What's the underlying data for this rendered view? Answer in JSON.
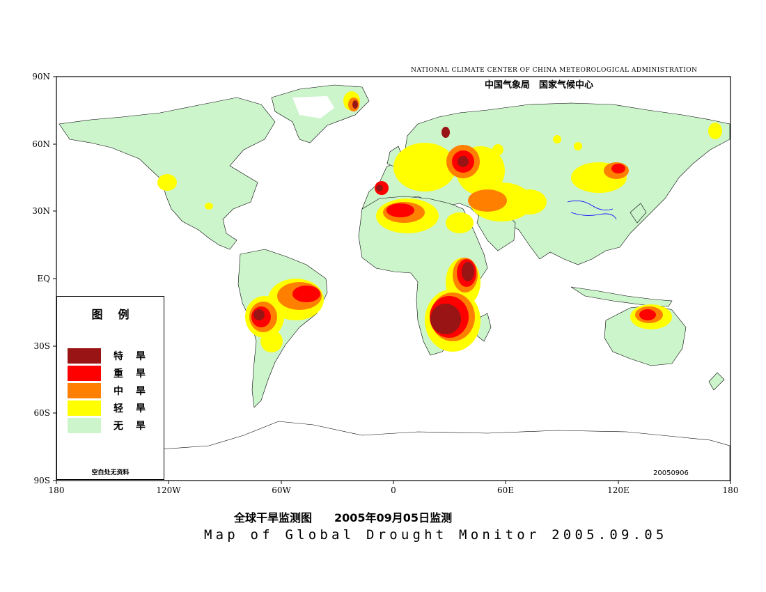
{
  "header": {
    "agency_en": "NATIONAL CLIMATE CENTER OF CHINA METEOROLOGICAL ADMINISTRATION",
    "agency_cn": "中国气象局　国家气候中心"
  },
  "map": {
    "lat_labels": [
      "90N",
      "60N",
      "30N",
      "EQ",
      "30S",
      "60S",
      "90S"
    ],
    "lon_labels": [
      "180",
      "120W",
      "60W",
      "0",
      "60E",
      "120E",
      "180"
    ],
    "date_stamp": "20050906",
    "colors": {
      "ocean": "#ffffff",
      "no_drought": "#ccf5cc",
      "light": "#ffff00",
      "moderate": "#ff8000",
      "severe": "#ff0000",
      "extreme": "#991414",
      "border": "#000000",
      "river": "#0000ff"
    }
  },
  "legend": {
    "title": "图例",
    "items": [
      {
        "label": "特旱",
        "color": "#991414"
      },
      {
        "label": "重旱",
        "color": "#ff0000"
      },
      {
        "label": "中旱",
        "color": "#ff8000"
      },
      {
        "label": "轻旱",
        "color": "#ffff00"
      },
      {
        "label": "无旱",
        "color": "#ccf5cc"
      }
    ],
    "note": "空白处无资料"
  },
  "titles": {
    "cn": "全球干旱监测图　　2005年09月05日监测",
    "en": "Map of Global Drought Monitor 2005.09.05"
  }
}
